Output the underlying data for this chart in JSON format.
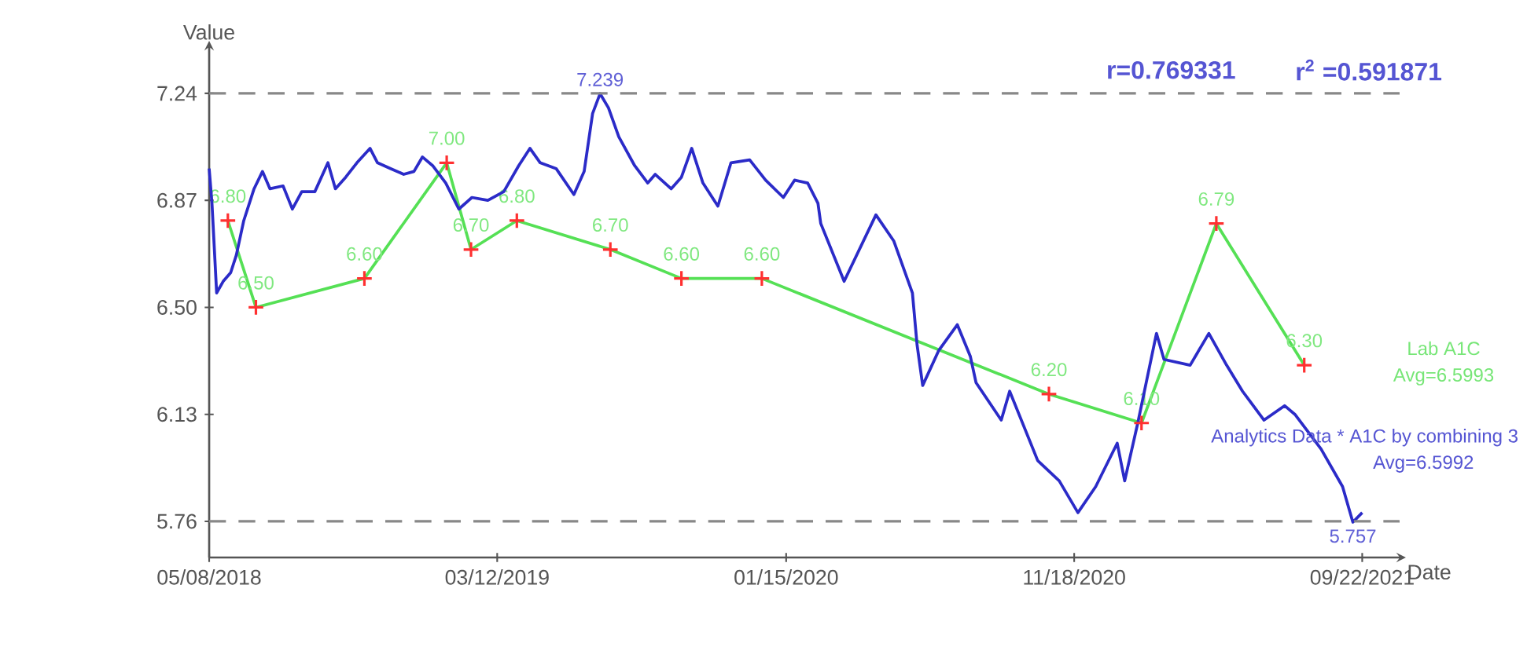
{
  "chart_data": {
    "type": "line",
    "xlabel": "Date",
    "ylabel": "Value",
    "xlim": [
      "2018-05-08",
      "2021-11-01"
    ],
    "ylim": [
      5.635,
      7.4
    ],
    "xticks": [
      {
        "value": "2018-05-08",
        "label": "05/08/2018"
      },
      {
        "value": "2019-03-12",
        "label": "03/12/2019"
      },
      {
        "value": "2020-01-15",
        "label": "01/15/2020"
      },
      {
        "value": "2020-11-18",
        "label": "11/18/2020"
      },
      {
        "value": "2021-09-22",
        "label": "09/22/2021"
      }
    ],
    "yticks": [
      5.76,
      6.13,
      {
        "value": 6.5,
        "label": "6.50"
      },
      6.87,
      7.24
    ],
    "grid": false,
    "line_style": "solid",
    "series": [
      {
        "name": "Lab A1C",
        "color": "#55e055",
        "marker": "cross",
        "colors": [
          "#ff3030",
          "#ff3030",
          "#ff3030",
          "#ff3030",
          "#ff3030",
          "#ff3030",
          "#ff3030",
          "#ff3030",
          "#ff3030",
          "#ff3030",
          "#ff3030",
          "#ff3030",
          "#ff3030"
        ],
        "x": [
          "2018-05-28",
          "2018-06-27",
          "2018-10-21",
          "2019-01-17",
          "2019-02-12",
          "2019-04-02",
          "2019-07-11",
          "2019-09-25",
          "2019-12-20",
          "2020-10-22",
          "2021-01-29",
          "2021-04-19",
          "2021-07-22"
        ],
        "values": [
          6.8,
          6.5,
          6.6,
          7.0,
          6.7,
          6.8,
          6.7,
          6.6,
          6.6,
          6.2,
          6.1,
          6.79,
          6.3
        ],
        "value_labels": [
          "6.80",
          "6.50",
          "6.60",
          "7.00",
          "6.70",
          "6.80",
          "6.70",
          "6.60",
          "6.60",
          "6.20",
          "6.10",
          "6.79",
          "6.30"
        ]
      },
      {
        "name": "Analytics Data * A1C by combining 3",
        "color": "#2b2bc8",
        "marker": "none",
        "x": [
          "2018-05-08",
          "2018-05-11",
          "2018-05-16",
          "2018-05-23",
          "2018-05-31",
          "2018-06-06",
          "2018-06-14",
          "2018-06-25",
          "2018-07-04",
          "2018-07-12",
          "2018-07-26",
          "2018-08-05",
          "2018-08-15",
          "2018-08-29",
          "2018-09-12",
          "2018-09-20",
          "2018-10-01",
          "2018-10-13",
          "2018-10-27",
          "2018-11-04",
          "2018-11-18",
          "2018-12-02",
          "2018-12-13",
          "2018-12-22",
          "2019-01-02",
          "2019-01-16",
          "2019-01-30",
          "2019-02-13",
          "2019-03-02",
          "2019-03-19",
          "2019-04-04",
          "2019-04-16",
          "2019-04-27",
          "2019-05-14",
          "2019-06-02",
          "2019-06-13",
          "2019-06-22",
          "2019-06-30",
          "2019-07-09",
          "2019-07-20",
          "2019-08-06",
          "2019-08-20",
          "2019-08-28",
          "2019-09-14",
          "2019-09-25",
          "2019-10-06",
          "2019-10-18",
          "2019-11-03",
          "2019-11-17",
          "2019-12-07",
          "2019-12-24",
          "2020-01-12",
          "2020-01-24",
          "2020-02-07",
          "2020-02-18",
          "2020-02-21",
          "2020-03-17",
          "2020-04-20",
          "2020-05-09",
          "2020-05-29",
          "2020-06-03",
          "2020-06-09",
          "2020-06-26",
          "2020-07-16",
          "2020-07-30",
          "2020-08-05",
          "2020-09-01",
          "2020-09-10",
          "2020-10-10",
          "2020-11-02",
          "2020-11-22",
          "2020-12-11",
          "2021-01-03",
          "2021-01-11",
          "2021-01-25",
          "2021-02-14",
          "2021-02-22",
          "2021-03-22",
          "2021-04-11",
          "2021-04-30",
          "2021-05-17",
          "2021-06-09",
          "2021-07-01",
          "2021-07-12",
          "2021-08-09",
          "2021-09-01",
          "2021-09-12",
          "2021-09-22"
        ],
        "values": [
          6.98,
          6.86,
          6.55,
          6.59,
          6.62,
          6.68,
          6.8,
          6.91,
          6.97,
          6.91,
          6.92,
          6.84,
          6.9,
          6.9,
          7.0,
          6.91,
          6.95,
          7.0,
          7.05,
          7.0,
          6.98,
          6.96,
          6.97,
          7.02,
          6.99,
          6.93,
          6.84,
          6.88,
          6.87,
          6.9,
          6.99,
          7.05,
          7.0,
          6.98,
          6.89,
          6.97,
          7.17,
          7.239,
          7.19,
          7.09,
          6.99,
          6.93,
          6.96,
          6.91,
          6.95,
          7.05,
          6.93,
          6.85,
          7.0,
          7.01,
          6.94,
          6.88,
          6.94,
          6.93,
          6.86,
          6.79,
          6.59,
          6.82,
          6.73,
          6.55,
          6.37,
          6.23,
          6.35,
          6.44,
          6.33,
          6.24,
          6.11,
          6.21,
          5.97,
          5.9,
          5.79,
          5.88,
          6.03,
          5.9,
          6.1,
          6.41,
          6.32,
          6.3,
          6.41,
          6.3,
          6.21,
          6.11,
          6.16,
          6.13,
          6.01,
          5.88,
          5.757,
          5.79
        ]
      }
    ],
    "ref_lines": [
      {
        "axis": "y",
        "value": 7.24,
        "color": "#888888",
        "line_style": "dashed"
      },
      {
        "axis": "y",
        "value": 5.76,
        "color": "#888888",
        "line_style": "dashed"
      }
    ],
    "annotations": [
      {
        "text": "7.239",
        "x": "2019-06-30",
        "y": 7.239
      },
      {
        "text": "5.757",
        "x": "2021-09-12",
        "y": 5.757
      },
      "r=0.769331",
      "r$^{2}$ =0.591871",
      "Avg=6.5993",
      "Avg=6.5992"
    ]
  }
}
